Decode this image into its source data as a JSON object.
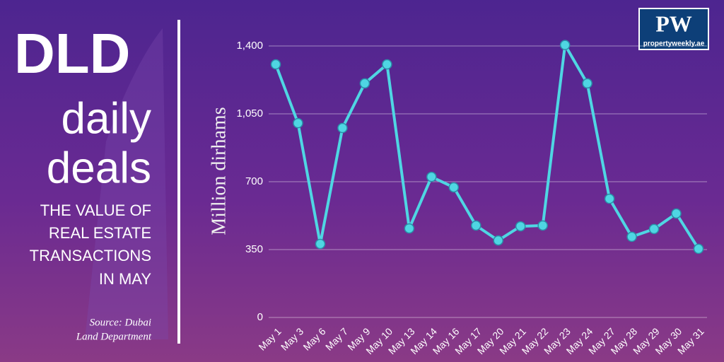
{
  "header": {
    "title_lines": [
      "DLD",
      "daily",
      "deals"
    ],
    "subtitle_lines": [
      "THE VALUE OF",
      "REAL ESTATE",
      "TRANSACTIONS",
      "IN MAY"
    ],
    "source_lines": [
      "Source: Dubai",
      "Land Department"
    ],
    "logo": {
      "mark": "PW",
      "site": "propertyweekly.ae"
    }
  },
  "chart_data": {
    "type": "line",
    "y_label": "Million dirhams",
    "categories": [
      "May 1",
      "May 3",
      "May 6",
      "May 7",
      "May 9",
      "May 10",
      "May 13",
      "May 14",
      "May 16",
      "May 17",
      "May 20",
      "May 21",
      "May 22",
      "May 23",
      "May 24",
      "May 27",
      "May 28",
      "May 29",
      "May 30",
      "May 31"
    ],
    "values": [
      1305,
      1002,
      379,
      977,
      1207,
      1305,
      459,
      725,
      671,
      474,
      397,
      470,
      474,
      1405,
      1207,
      612,
      416,
      456,
      536,
      354
    ],
    "color": "#4fd6e3",
    "ylim": [
      0,
      1400
    ],
    "yticks": [
      0,
      350,
      700,
      {
        "value": 1050,
        "label": "1,050"
      },
      {
        "value": 1400,
        "label": "1,400"
      }
    ],
    "grid": true
  }
}
